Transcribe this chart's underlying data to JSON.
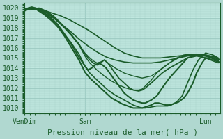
{
  "title": "Pression niveau de la mer( hPa )",
  "bg_color": "#b0d8d0",
  "plot_bg_color": "#c0e8e0",
  "grid_major_color": "#90c0b8",
  "grid_minor_color": "#a8d4cc",
  "line_color": "#1a5c2a",
  "yticks": [
    1010,
    1011,
    1012,
    1013,
    1014,
    1015,
    1016,
    1017,
    1018,
    1019,
    1020
  ],
  "xtick_positions": [
    0.0,
    0.333,
    0.667,
    1.0
  ],
  "xtick_labels": [
    "VenDim",
    "Sam",
    "",
    "Lun"
  ],
  "xlim": [
    0.0,
    1.08
  ],
  "ylim": [
    1009.5,
    1020.5
  ],
  "lines": [
    {
      "x": [
        0.0,
        0.02,
        0.04,
        0.06,
        0.08,
        0.1,
        0.15,
        0.2,
        0.25,
        0.3,
        0.35,
        0.4,
        0.45,
        0.5,
        0.55,
        0.6,
        0.65,
        0.7,
        0.75,
        0.8,
        0.85,
        0.9,
        0.95,
        1.0,
        1.05,
        1.08
      ],
      "y": [
        1019.8,
        1020.0,
        1020.1,
        1020.0,
        1019.9,
        1019.8,
        1019.5,
        1019.2,
        1018.8,
        1018.3,
        1017.8,
        1017.2,
        1016.6,
        1016.0,
        1015.5,
        1015.2,
        1015.0,
        1015.0,
        1015.0,
        1015.1,
        1015.2,
        1015.3,
        1015.3,
        1015.2,
        1015.0,
        1014.8
      ],
      "lw": 1.2
    },
    {
      "x": [
        0.0,
        0.02,
        0.05,
        0.08,
        0.12,
        0.16,
        0.2,
        0.25,
        0.3,
        0.35,
        0.4,
        0.45,
        0.5,
        0.55,
        0.6,
        0.65,
        0.7,
        0.75,
        0.8,
        0.85,
        0.9,
        0.95,
        1.0,
        1.05,
        1.08
      ],
      "y": [
        1019.7,
        1019.9,
        1020.0,
        1019.8,
        1019.5,
        1019.0,
        1018.4,
        1017.7,
        1016.9,
        1016.2,
        1015.6,
        1015.1,
        1014.8,
        1014.6,
        1014.5,
        1014.5,
        1014.5,
        1014.6,
        1014.8,
        1015.0,
        1015.2,
        1015.3,
        1015.3,
        1015.1,
        1014.8
      ],
      "lw": 1.2
    },
    {
      "x": [
        0.0,
        0.03,
        0.06,
        0.1,
        0.14,
        0.18,
        0.22,
        0.26,
        0.3,
        0.333,
        0.36,
        0.38,
        0.4,
        0.42,
        0.44,
        0.46,
        0.5,
        0.55,
        0.6,
        0.65,
        0.7,
        0.75,
        0.8,
        0.85,
        0.9,
        0.95,
        1.0,
        1.05,
        1.08
      ],
      "y": [
        1019.8,
        1019.9,
        1020.0,
        1019.7,
        1019.3,
        1018.7,
        1018.0,
        1017.2,
        1016.3,
        1015.5,
        1015.0,
        1014.7,
        1014.5,
        1014.6,
        1014.8,
        1014.5,
        1014.0,
        1013.5,
        1013.2,
        1013.0,
        1013.2,
        1013.8,
        1014.5,
        1015.0,
        1015.3,
        1015.4,
        1015.3,
        1015.1,
        1014.8
      ],
      "lw": 1.0
    },
    {
      "x": [
        0.0,
        0.04,
        0.08,
        0.12,
        0.16,
        0.2,
        0.25,
        0.3,
        0.333,
        0.36,
        0.38,
        0.4,
        0.42,
        0.44,
        0.46,
        0.48,
        0.5,
        0.52,
        0.55,
        0.58,
        0.6,
        0.63,
        0.65,
        0.667,
        0.7,
        0.73,
        0.76,
        0.8,
        0.85,
        0.9,
        0.95,
        1.0,
        1.04,
        1.07
      ],
      "y": [
        1019.9,
        1020.0,
        1019.9,
        1019.6,
        1019.1,
        1018.4,
        1017.5,
        1016.4,
        1015.4,
        1014.8,
        1014.5,
        1014.3,
        1014.5,
        1014.8,
        1014.5,
        1014.0,
        1013.5,
        1013.0,
        1012.5,
        1012.0,
        1011.8,
        1011.7,
        1011.8,
        1012.0,
        1012.5,
        1013.0,
        1013.5,
        1014.0,
        1014.5,
        1015.0,
        1015.2,
        1015.0,
        1014.8,
        1014.6
      ],
      "lw": 1.3
    },
    {
      "x": [
        0.0,
        0.03,
        0.06,
        0.1,
        0.14,
        0.18,
        0.22,
        0.26,
        0.3,
        0.333,
        0.35,
        0.37,
        0.39,
        0.41,
        0.43,
        0.45,
        0.47,
        0.49,
        0.51,
        0.53,
        0.55,
        0.57,
        0.6,
        0.63,
        0.65,
        0.667,
        0.7,
        0.73,
        0.76,
        0.8,
        0.85,
        0.9,
        0.95,
        1.0,
        1.04,
        1.07
      ],
      "y": [
        1019.9,
        1020.0,
        1019.9,
        1019.6,
        1019.1,
        1018.4,
        1017.4,
        1016.3,
        1015.1,
        1014.2,
        1013.8,
        1014.0,
        1014.3,
        1014.5,
        1014.3,
        1014.0,
        1013.5,
        1013.0,
        1012.5,
        1012.0,
        1011.5,
        1011.2,
        1010.8,
        1010.6,
        1010.5,
        1010.5,
        1010.8,
        1011.2,
        1012.0,
        1013.0,
        1014.0,
        1015.0,
        1015.3,
        1015.2,
        1015.0,
        1014.7
      ],
      "lw": 1.5
    },
    {
      "x": [
        0.0,
        0.03,
        0.06,
        0.1,
        0.14,
        0.18,
        0.22,
        0.26,
        0.3,
        0.333,
        0.36,
        0.39,
        0.42,
        0.45,
        0.48,
        0.51,
        0.54,
        0.57,
        0.6,
        0.63,
        0.65,
        0.667,
        0.7,
        0.72,
        0.74,
        0.76,
        0.78,
        0.8,
        0.82,
        0.85,
        0.88,
        0.9,
        0.93,
        0.95,
        0.98,
        1.0,
        1.03,
        1.06,
        1.08
      ],
      "y": [
        1019.8,
        1020.0,
        1019.9,
        1019.5,
        1019.0,
        1018.2,
        1017.2,
        1016.0,
        1014.8,
        1013.6,
        1013.0,
        1012.5,
        1012.0,
        1011.5,
        1011.0,
        1010.7,
        1010.4,
        1010.2,
        1010.0,
        1010.0,
        1010.0,
        1010.1,
        1010.3,
        1010.5,
        1010.5,
        1010.4,
        1010.3,
        1010.3,
        1010.4,
        1010.6,
        1011.0,
        1011.5,
        1012.5,
        1013.5,
        1014.5,
        1015.0,
        1015.0,
        1014.8,
        1014.5
      ],
      "lw": 1.5
    },
    {
      "x": [
        0.0,
        0.03,
        0.07,
        0.11,
        0.15,
        0.2,
        0.25,
        0.3,
        0.333,
        0.36,
        0.4,
        0.43,
        0.46,
        0.5,
        0.53,
        0.56,
        0.6,
        0.63,
        0.65,
        0.667,
        0.7,
        0.73,
        0.75,
        0.77,
        0.79,
        0.81,
        0.84,
        0.87,
        0.9,
        0.93,
        0.96,
        1.0,
        1.04,
        1.07
      ],
      "y": [
        1019.7,
        1019.9,
        1019.8,
        1019.3,
        1018.7,
        1017.8,
        1016.7,
        1015.4,
        1014.2,
        1013.5,
        1012.8,
        1012.3,
        1011.8,
        1011.3,
        1011.0,
        1010.7,
        1010.3,
        1010.1,
        1010.0,
        1010.0,
        1010.1,
        1010.2,
        1010.2,
        1010.2,
        1010.2,
        1010.3,
        1010.6,
        1011.2,
        1012.5,
        1013.8,
        1014.8,
        1015.5,
        1015.3,
        1015.0
      ],
      "lw": 1.2
    },
    {
      "x": [
        0.0,
        0.04,
        0.08,
        0.12,
        0.16,
        0.2,
        0.25,
        0.3,
        0.333,
        0.36,
        0.4,
        0.44,
        0.48,
        0.52,
        0.56,
        0.6,
        0.63,
        0.65,
        0.667,
        0.7,
        0.73,
        0.76,
        0.8,
        0.84,
        0.88,
        0.92,
        0.96,
        1.0,
        1.04,
        1.07
      ],
      "y": [
        1019.8,
        1019.9,
        1020.0,
        1019.7,
        1019.2,
        1018.5,
        1017.5,
        1016.3,
        1015.2,
        1014.5,
        1013.8,
        1013.2,
        1012.7,
        1012.3,
        1012.0,
        1011.8,
        1011.8,
        1011.9,
        1012.2,
        1012.8,
        1013.5,
        1014.0,
        1014.5,
        1015.0,
        1015.3,
        1015.4,
        1015.2,
        1015.0,
        1014.7,
        1014.5
      ],
      "lw": 1.0
    }
  ],
  "tick_fontsize": 7,
  "label_fontsize": 8
}
